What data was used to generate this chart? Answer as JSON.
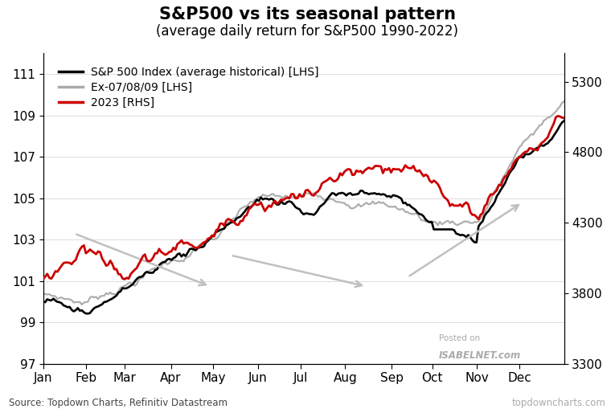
{
  "title": "S&P500 vs its seasonal pattern",
  "subtitle": "(average daily return for S&P500 1990-2022)",
  "source_text": "Source: Topdown Charts, Refinitiv Datastream",
  "watermark1": "Posted on",
  "watermark2": "ISABELNET.com",
  "watermark3": "topdowncharts.com",
  "legend": [
    "S&P 500 Index (average historical) [LHS]",
    "Ex-07/08/09 [LHS]",
    "2023 [RHS]"
  ],
  "line_colors": [
    "#000000",
    "#aaaaaa",
    "#cc0000"
  ],
  "lhs_ylim": [
    97,
    112
  ],
  "rhs_ylim": [
    3300,
    5500
  ],
  "lhs_yticks": [
    97,
    99,
    101,
    103,
    105,
    107,
    109,
    111
  ],
  "rhs_yticks": [
    3300,
    3800,
    4300,
    4800,
    5300
  ],
  "months": [
    "Jan",
    "Feb",
    "Mar",
    "Apr",
    "May",
    "Jun",
    "Jul",
    "Aug",
    "Sep",
    "Oct",
    "Nov",
    "Dec"
  ],
  "background_color": "#ffffff",
  "grid_color": "#e0e0e0",
  "title_fontsize": 15,
  "subtitle_fontsize": 12,
  "tick_fontsize": 11,
  "month_days": [
    21,
    19,
    23,
    21,
    22,
    21,
    22,
    23,
    20,
    22,
    21,
    22
  ]
}
